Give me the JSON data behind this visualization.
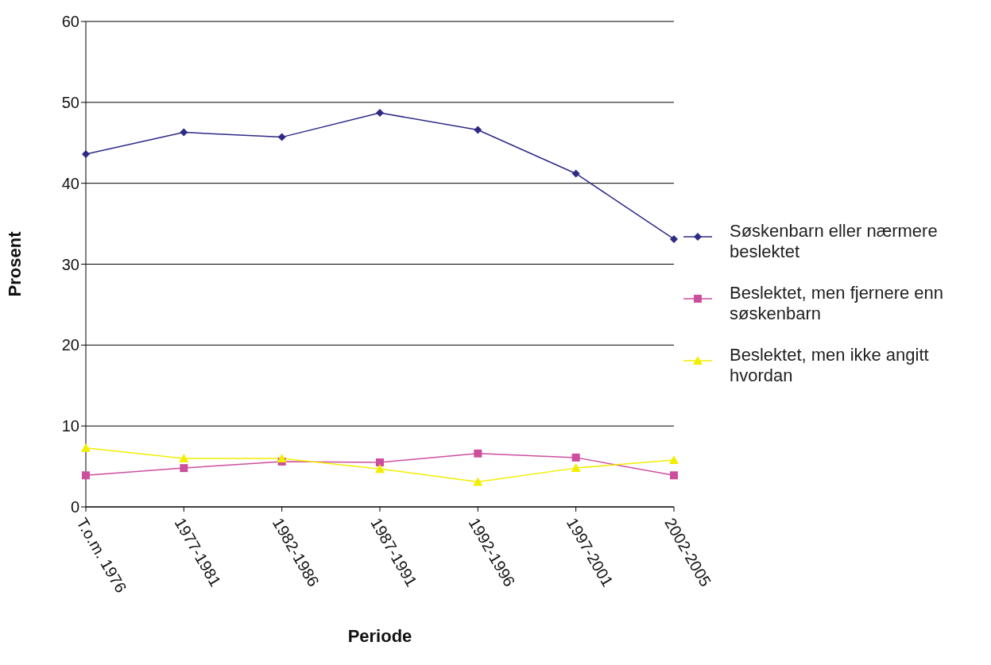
{
  "chart_data": {
    "type": "line",
    "xlabel": "Periode",
    "ylabel": "Prosent",
    "categories": [
      "T.o.m. 1976",
      "1977-1981",
      "1982-1986",
      "1987-1991",
      "1992-1996",
      "1997-2001",
      "2002-2005"
    ],
    "series": [
      {
        "name": "Søskenbarn eller nærmere beslektet",
        "color": "#2e2a86",
        "marker": "diamond",
        "values": [
          43.6,
          46.3,
          45.7,
          48.7,
          46.6,
          41.2,
          33.1
        ]
      },
      {
        "name": "Beslektet, men fjernere enn søskenbarn",
        "color": "#cc4f9e",
        "marker": "square",
        "values": [
          3.9,
          4.8,
          5.6,
          5.5,
          6.6,
          6.1,
          3.9
        ]
      },
      {
        "name": "Beslektet, men ikke angitt hvordan",
        "color": "#f2ee00",
        "marker": "triangle",
        "values": [
          7.3,
          6.0,
          6.0,
          4.7,
          3.1,
          4.8,
          5.8
        ]
      }
    ],
    "ylim": [
      0,
      60
    ],
    "yticks": [
      0,
      10,
      20,
      30,
      40,
      50,
      60
    ],
    "grid": "y",
    "legend": "right"
  }
}
